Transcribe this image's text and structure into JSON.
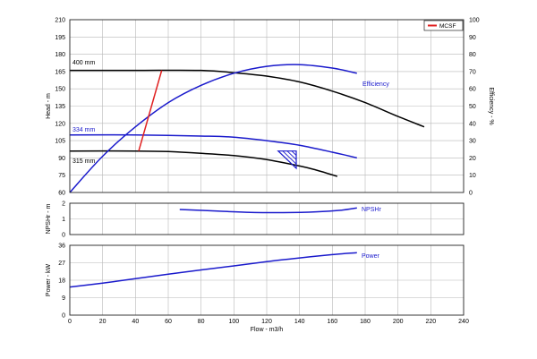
{
  "chart_data": [
    {
      "panel": "head",
      "type": "line",
      "ylabel": "Head - m",
      "y2label": "Efficiency - %",
      "xlim": [
        0,
        240
      ],
      "ylim": [
        60,
        210
      ],
      "y2lim": [
        0,
        100
      ],
      "yticks": [
        60,
        75,
        90,
        105,
        120,
        135,
        150,
        165,
        180,
        195,
        210
      ],
      "y2ticks": [
        0,
        10,
        20,
        30,
        40,
        50,
        60,
        70,
        80,
        90,
        100
      ],
      "grid": true,
      "legend": {
        "placement": "top-right",
        "entries": [
          {
            "label": "MCSF",
            "color": "#e02020"
          }
        ]
      },
      "curve_labels": [
        "400 mm",
        "334 mm",
        "315 mm",
        "Efficiency"
      ],
      "series": [
        {
          "name": "400 mm",
          "color": "#000000",
          "axis": "y",
          "x": [
            0,
            40,
            80,
            100,
            120,
            140,
            160,
            180,
            200,
            216
          ],
          "y": [
            166,
            166,
            166,
            164,
            161,
            156,
            148,
            138,
            126,
            117
          ]
        },
        {
          "name": "334 mm",
          "color": "#1a1acc",
          "axis": "y",
          "x": [
            0,
            40,
            80,
            100,
            120,
            140,
            160,
            175
          ],
          "y": [
            110,
            110,
            109,
            108,
            105,
            101,
            95,
            90
          ]
        },
        {
          "name": "315 mm",
          "color": "#000000",
          "axis": "y",
          "x": [
            0,
            40,
            60,
            80,
            100,
            120,
            140,
            150,
            163
          ],
          "y": [
            96,
            96,
            95.5,
            94,
            92,
            88.5,
            83,
            79.5,
            74
          ]
        },
        {
          "name": "Efficiency",
          "color": "#1a1acc",
          "axis": "y2",
          "x": [
            0,
            20,
            40,
            60,
            80,
            100,
            120,
            140,
            160,
            175
          ],
          "y": [
            0,
            21,
            38,
            52,
            62,
            69,
            73,
            74,
            72,
            69
          ]
        },
        {
          "name": "MCSF",
          "color": "#e02020",
          "axis": "y",
          "x": [
            42,
            56
          ],
          "y": [
            96,
            166
          ]
        }
      ]
    },
    {
      "panel": "npshr",
      "type": "line",
      "ylabel": "NPSHr - m",
      "xlim": [
        0,
        240
      ],
      "ylim": [
        0,
        2
      ],
      "yticks": [
        0,
        1,
        2
      ],
      "grid": true,
      "curve_labels": [
        "NPSHr"
      ],
      "series": [
        {
          "name": "NPSHr",
          "color": "#1a1acc",
          "x": [
            67,
            90,
            110,
            130,
            150,
            165,
            175
          ],
          "y": [
            1.6,
            1.5,
            1.42,
            1.4,
            1.45,
            1.55,
            1.7
          ]
        }
      ]
    },
    {
      "panel": "power",
      "type": "line",
      "ylabel": "Power - kW",
      "xlabel": "Flow - m3/h",
      "xlim": [
        0,
        240
      ],
      "ylim": [
        0,
        36
      ],
      "yticks": [
        0,
        9,
        18,
        27,
        36
      ],
      "xticks": [
        0,
        20,
        40,
        60,
        80,
        100,
        120,
        140,
        160,
        180,
        200,
        220,
        240
      ],
      "grid": true,
      "curve_labels": [
        "Power"
      ],
      "series": [
        {
          "name": "Power",
          "color": "#1a1acc",
          "x": [
            0,
            20,
            40,
            60,
            80,
            100,
            120,
            140,
            160,
            175
          ],
          "y": [
            14.5,
            16.5,
            18.8,
            21.1,
            23.3,
            25.4,
            27.6,
            29.5,
            31.2,
            32.2
          ]
        }
      ]
    }
  ]
}
